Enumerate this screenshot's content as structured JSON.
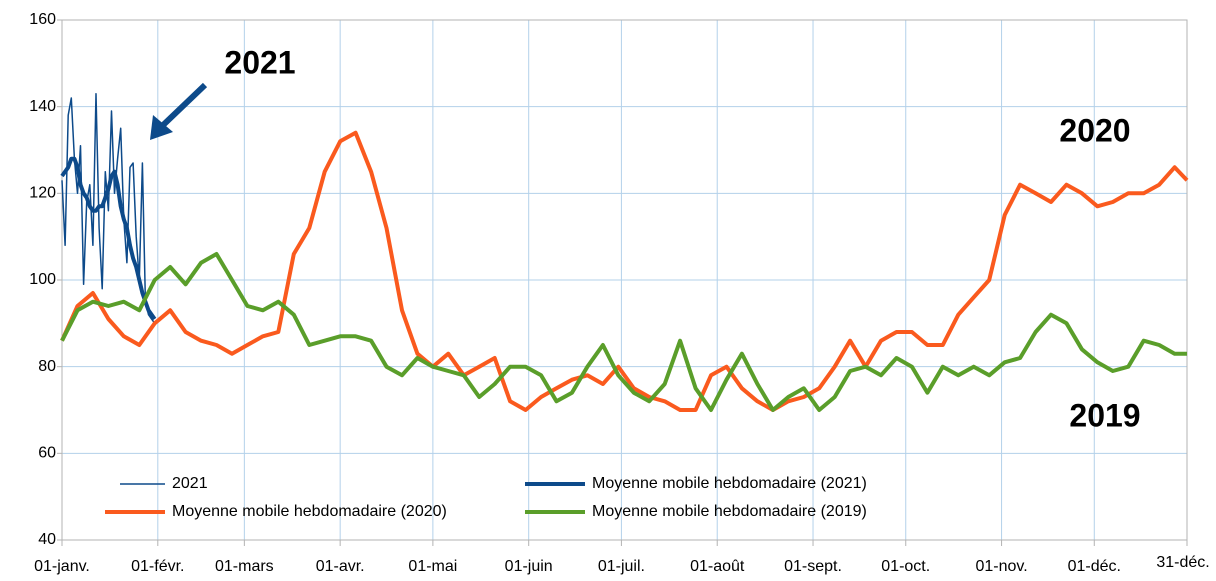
{
  "chart_data": {
    "type": "line",
    "xlim": [
      0,
      364
    ],
    "ylim": [
      40,
      160
    ],
    "yticks": [
      40,
      60,
      80,
      100,
      120,
      140,
      160
    ],
    "xticks": [
      {
        "value": 0,
        "label": "01-janv."
      },
      {
        "value": 31,
        "label": "01-févr."
      },
      {
        "value": 59,
        "label": "01-mars"
      },
      {
        "value": 90,
        "label": "01-avr."
      },
      {
        "value": 120,
        "label": "01-mai"
      },
      {
        "value": 151,
        "label": "01-juin"
      },
      {
        "value": 181,
        "label": "01-juil."
      },
      {
        "value": 212,
        "label": "01-août"
      },
      {
        "value": 243,
        "label": "01-sept."
      },
      {
        "value": 273,
        "label": "01-oct."
      },
      {
        "value": 304,
        "label": "01-nov."
      },
      {
        "value": 334,
        "label": "01-déc."
      },
      {
        "value": 364,
        "label": "31-déc."
      }
    ],
    "grid": true,
    "annotations": [
      {
        "text": "2021",
        "color": "#0d4a8a"
      },
      {
        "text": "2020",
        "color": "#fa5a1e"
      },
      {
        "text": "2019",
        "color": "#5a9e2a"
      }
    ],
    "series": [
      {
        "name": "2021",
        "color": "#0d4a8a",
        "line_width": 1.5,
        "x": [
          0,
          1,
          2,
          3,
          4,
          5,
          6,
          7,
          8,
          9,
          10,
          11,
          12,
          13,
          14,
          15,
          16,
          17,
          18,
          19,
          20,
          21,
          22,
          23,
          24,
          25,
          26,
          27,
          28,
          29,
          30
        ],
        "values": [
          123,
          108,
          138,
          142,
          128,
          120,
          131,
          99,
          118,
          122,
          108,
          143,
          112,
          98,
          125,
          116,
          139,
          120,
          128,
          135,
          114,
          104,
          126,
          127,
          110,
          100,
          127,
          95,
          92,
          91,
          90
        ]
      },
      {
        "name": "Moyenne mobile hebdomadaire (2021)",
        "color": "#0d4a8a",
        "line_width": 4,
        "x": [
          0,
          1,
          2,
          3,
          4,
          5,
          6,
          7,
          8,
          9,
          10,
          11,
          12,
          13,
          14,
          15,
          16,
          17,
          18,
          19,
          20,
          21,
          22,
          23,
          24,
          25,
          26,
          27,
          28,
          29,
          30
        ],
        "values": [
          124,
          125,
          126,
          128,
          128,
          126,
          122,
          120,
          119,
          117,
          116,
          116,
          117,
          117,
          119,
          121,
          124,
          125,
          122,
          117,
          114,
          112,
          108,
          105,
          103,
          100,
          97,
          95,
          93,
          92,
          91
        ]
      },
      {
        "name": "Moyenne mobile hebdomadaire (2020)",
        "color": "#fa5a1e",
        "line_width": 4,
        "x": [
          0,
          5,
          10,
          15,
          20,
          25,
          30,
          35,
          40,
          45,
          50,
          55,
          60,
          65,
          70,
          75,
          80,
          85,
          90,
          95,
          100,
          105,
          110,
          115,
          120,
          125,
          130,
          135,
          140,
          145,
          150,
          155,
          160,
          165,
          170,
          175,
          180,
          185,
          190,
          195,
          200,
          205,
          210,
          215,
          220,
          225,
          230,
          235,
          240,
          245,
          250,
          255,
          260,
          265,
          270,
          275,
          280,
          285,
          290,
          295,
          300,
          305,
          310,
          315,
          320,
          325,
          330,
          335,
          340,
          345,
          350,
          355,
          360,
          364
        ],
        "values": [
          86,
          94,
          97,
          91,
          87,
          85,
          90,
          93,
          88,
          86,
          85,
          83,
          85,
          87,
          88,
          106,
          112,
          125,
          132,
          134,
          125,
          112,
          93,
          83,
          80,
          83,
          78,
          80,
          82,
          72,
          70,
          73,
          75,
          77,
          78,
          76,
          80,
          75,
          73,
          72,
          70,
          70,
          78,
          80,
          75,
          72,
          70,
          72,
          73,
          75,
          80,
          86,
          80,
          86,
          88,
          88,
          85,
          85,
          92,
          96,
          100,
          115,
          122,
          120,
          118,
          122,
          120,
          117,
          118,
          120,
          120,
          122,
          126,
          123
        ]
      },
      {
        "name": "Moyenne mobile hebdomadaire (2019)",
        "color": "#5a9e2a",
        "line_width": 4,
        "x": [
          0,
          5,
          10,
          15,
          20,
          25,
          30,
          35,
          40,
          45,
          50,
          55,
          60,
          65,
          70,
          75,
          80,
          85,
          90,
          95,
          100,
          105,
          110,
          115,
          120,
          125,
          130,
          135,
          140,
          145,
          150,
          155,
          160,
          165,
          170,
          175,
          180,
          185,
          190,
          195,
          200,
          205,
          210,
          215,
          220,
          225,
          230,
          235,
          240,
          245,
          250,
          255,
          260,
          265,
          270,
          275,
          280,
          285,
          290,
          295,
          300,
          305,
          310,
          315,
          320,
          325,
          330,
          335,
          340,
          345,
          350,
          355,
          360,
          364
        ],
        "values": [
          86,
          93,
          95,
          94,
          95,
          93,
          100,
          103,
          99,
          104,
          106,
          100,
          94,
          93,
          95,
          92,
          85,
          86,
          87,
          87,
          86,
          80,
          78,
          82,
          80,
          79,
          78,
          73,
          76,
          80,
          80,
          78,
          72,
          74,
          80,
          85,
          78,
          74,
          72,
          76,
          86,
          75,
          70,
          77,
          83,
          76,
          70,
          73,
          75,
          70,
          73,
          79,
          80,
          78,
          82,
          80,
          74,
          80,
          78,
          80,
          78,
          81,
          82,
          88,
          92,
          90,
          84,
          81,
          79,
          80,
          86,
          85,
          83,
          83
        ]
      }
    ]
  }
}
